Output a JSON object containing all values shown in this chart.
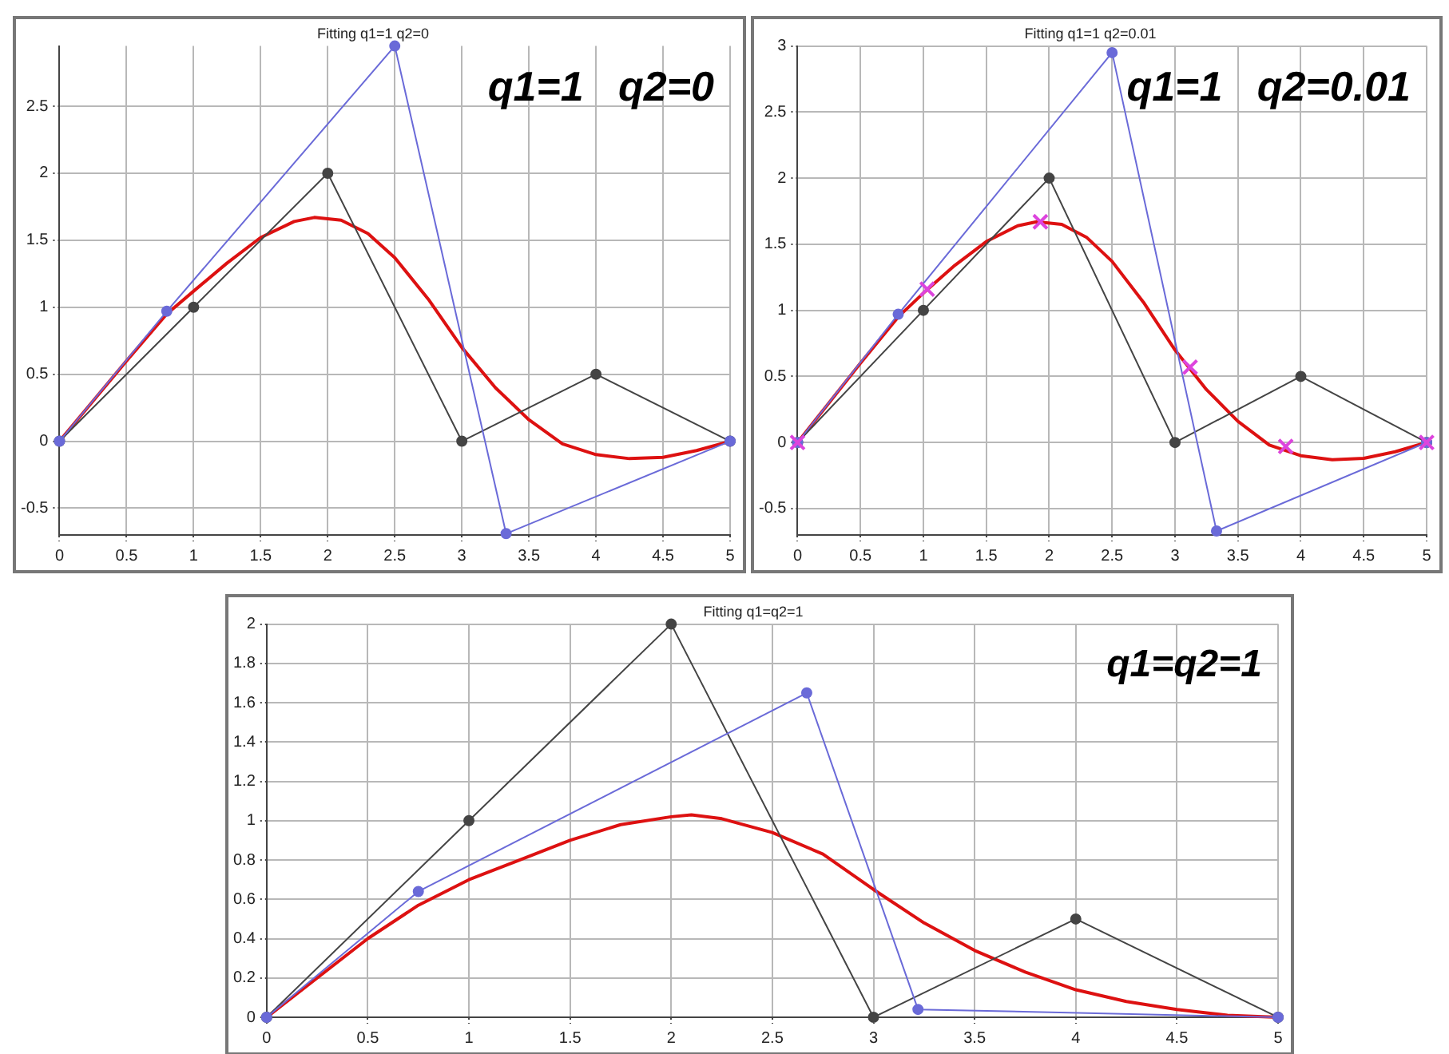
{
  "chart_data": [
    {
      "type": "line",
      "title": "Fitting q1=1 q2=0",
      "annotations": [
        "q1=1   q2=0"
      ],
      "xlim": [
        0,
        5
      ],
      "xticks": [
        0,
        0.5,
        1,
        1.5,
        2,
        2.5,
        3,
        3.5,
        4,
        4.5,
        5
      ],
      "ylim": [
        -0.7,
        2.95
      ],
      "yticks": [
        -0.5,
        0,
        0.5,
        1,
        1.5,
        2,
        2.5
      ],
      "grid": true,
      "legend": false,
      "series": [
        {
          "color": "#6a6ad8",
          "marker": "circle",
          "x": [
            0,
            0.8,
            2.5,
            3.33,
            5
          ],
          "values": [
            0,
            0.97,
            2.95,
            -0.69,
            0
          ]
        },
        {
          "color": "#444444",
          "marker": "circle",
          "x": [
            0,
            1,
            2,
            3,
            4,
            5
          ],
          "values": [
            0,
            1,
            2,
            0,
            0.5,
            0
          ]
        },
        {
          "color": "#dd1111",
          "marker": "none",
          "x": [
            0,
            0.25,
            0.5,
            0.8,
            1,
            1.25,
            1.5,
            1.75,
            1.9,
            2.1,
            2.3,
            2.5,
            2.75,
            3,
            3.25,
            3.5,
            3.75,
            4,
            4.25,
            4.5,
            4.75,
            5
          ],
          "values": [
            0,
            0.3,
            0.6,
            0.95,
            1.12,
            1.33,
            1.52,
            1.64,
            1.67,
            1.65,
            1.55,
            1.37,
            1.06,
            0.7,
            0.4,
            0.16,
            -0.02,
            -0.1,
            -0.13,
            -0.12,
            -0.07,
            0
          ]
        }
      ]
    },
    {
      "type": "line",
      "title": "Fitting q1=1 q2=0.01",
      "annotations": [
        "q1=1   q2=0.01"
      ],
      "xlim": [
        0,
        5
      ],
      "xticks": [
        0,
        0.5,
        1,
        1.5,
        2,
        2.5,
        3,
        3.5,
        4,
        4.5,
        5
      ],
      "ylim": [
        -0.7,
        3
      ],
      "yticks": [
        -0.5,
        0,
        0.5,
        1,
        1.5,
        2,
        2.5,
        3
      ],
      "grid": true,
      "legend": false,
      "series": [
        {
          "color": "#6a6ad8",
          "marker": "circle",
          "x": [
            0,
            0.8,
            2.5,
            3.33,
            5
          ],
          "values": [
            0,
            0.97,
            2.95,
            -0.67,
            0
          ]
        },
        {
          "color": "#444444",
          "marker": "circle",
          "x": [
            0,
            1,
            2,
            3,
            4,
            5
          ],
          "values": [
            0,
            1,
            2,
            0,
            0.5,
            0
          ]
        },
        {
          "color": "#dd1111",
          "marker": "none",
          "x": [
            0,
            0.25,
            0.5,
            0.8,
            1,
            1.25,
            1.5,
            1.75,
            1.9,
            2.1,
            2.3,
            2.5,
            2.75,
            3,
            3.25,
            3.5,
            3.75,
            4,
            4.25,
            4.5,
            4.75,
            5
          ],
          "values": [
            0,
            0.3,
            0.6,
            0.95,
            1.13,
            1.34,
            1.52,
            1.64,
            1.67,
            1.65,
            1.55,
            1.37,
            1.06,
            0.7,
            0.4,
            0.16,
            -0.02,
            -0.1,
            -0.13,
            -0.12,
            -0.07,
            0
          ]
        },
        {
          "type": "scatter",
          "color": "#dd44dd",
          "marker": "cross",
          "x": [
            0,
            1.03,
            1.93,
            3.12,
            3.88,
            5
          ],
          "values": [
            0,
            1.16,
            1.67,
            0.57,
            -0.03,
            0
          ]
        }
      ]
    },
    {
      "type": "line",
      "title": "Fitting q1=q2=1",
      "annotations": [
        "q1=q2=1"
      ],
      "xlim": [
        0,
        5
      ],
      "xticks": [
        0,
        0.5,
        1,
        1.5,
        2,
        2.5,
        3,
        3.5,
        4,
        4.5,
        5
      ],
      "ylim": [
        0,
        2
      ],
      "yticks": [
        0,
        0.2,
        0.4,
        0.6,
        0.8,
        1,
        1.2,
        1.4,
        1.6,
        1.8,
        2
      ],
      "grid": true,
      "legend": false,
      "series": [
        {
          "color": "#6a6ad8",
          "marker": "circle",
          "x": [
            0,
            0.75,
            2.67,
            3.22,
            5
          ],
          "values": [
            0,
            0.64,
            1.65,
            0.04,
            0
          ]
        },
        {
          "color": "#444444",
          "marker": "circle",
          "x": [
            0,
            1,
            2,
            3,
            4,
            5
          ],
          "values": [
            0,
            1,
            2,
            0,
            0.5,
            0
          ]
        },
        {
          "color": "#dd1111",
          "marker": "none",
          "x": [
            0,
            0.25,
            0.5,
            0.75,
            1,
            1.25,
            1.5,
            1.75,
            2,
            2.1,
            2.25,
            2.5,
            2.75,
            3,
            3.25,
            3.5,
            3.75,
            4,
            4.25,
            4.5,
            4.75,
            5
          ],
          "values": [
            0,
            0.2,
            0.4,
            0.57,
            0.7,
            0.8,
            0.9,
            0.98,
            1.02,
            1.03,
            1.01,
            0.94,
            0.83,
            0.65,
            0.48,
            0.34,
            0.23,
            0.14,
            0.08,
            0.04,
            0.01,
            0
          ]
        }
      ]
    }
  ]
}
